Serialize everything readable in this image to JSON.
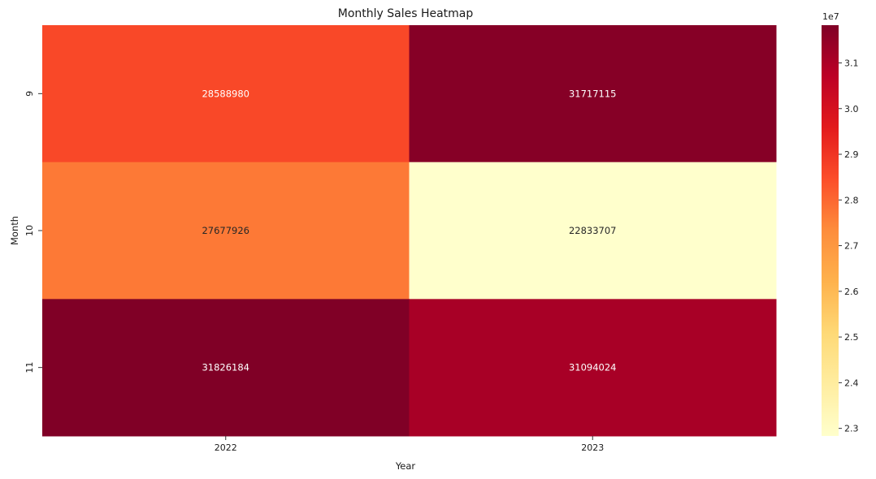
{
  "chart_data": {
    "type": "heatmap",
    "title": "Monthly Sales Heatmap",
    "xlabel": "Year",
    "ylabel": "Month",
    "x_categories": [
      "2022",
      "2023"
    ],
    "y_categories": [
      "9",
      "10",
      "11"
    ],
    "values": [
      [
        28588980,
        31717115
      ],
      [
        27677926,
        22833707
      ],
      [
        31826184,
        31094024
      ]
    ],
    "cell_labels": [
      [
        "28588980",
        "31717115"
      ],
      [
        "27677926",
        "22833707"
      ],
      [
        "31826184",
        "31094024"
      ]
    ],
    "colorscale": "YlOrRd",
    "colorbar": {
      "range": [
        22833707,
        31826184
      ],
      "ticks": [
        2.3,
        2.4,
        2.5,
        2.6,
        2.7,
        2.8,
        2.9,
        3.0,
        3.1
      ],
      "tick_labels": [
        "2.3",
        "2.4",
        "2.5",
        "2.6",
        "2.7",
        "2.8",
        "2.9",
        "3.0",
        "3.1"
      ],
      "multiplier_label": "1e7"
    },
    "grid": false,
    "legend": "colorbar-right"
  }
}
